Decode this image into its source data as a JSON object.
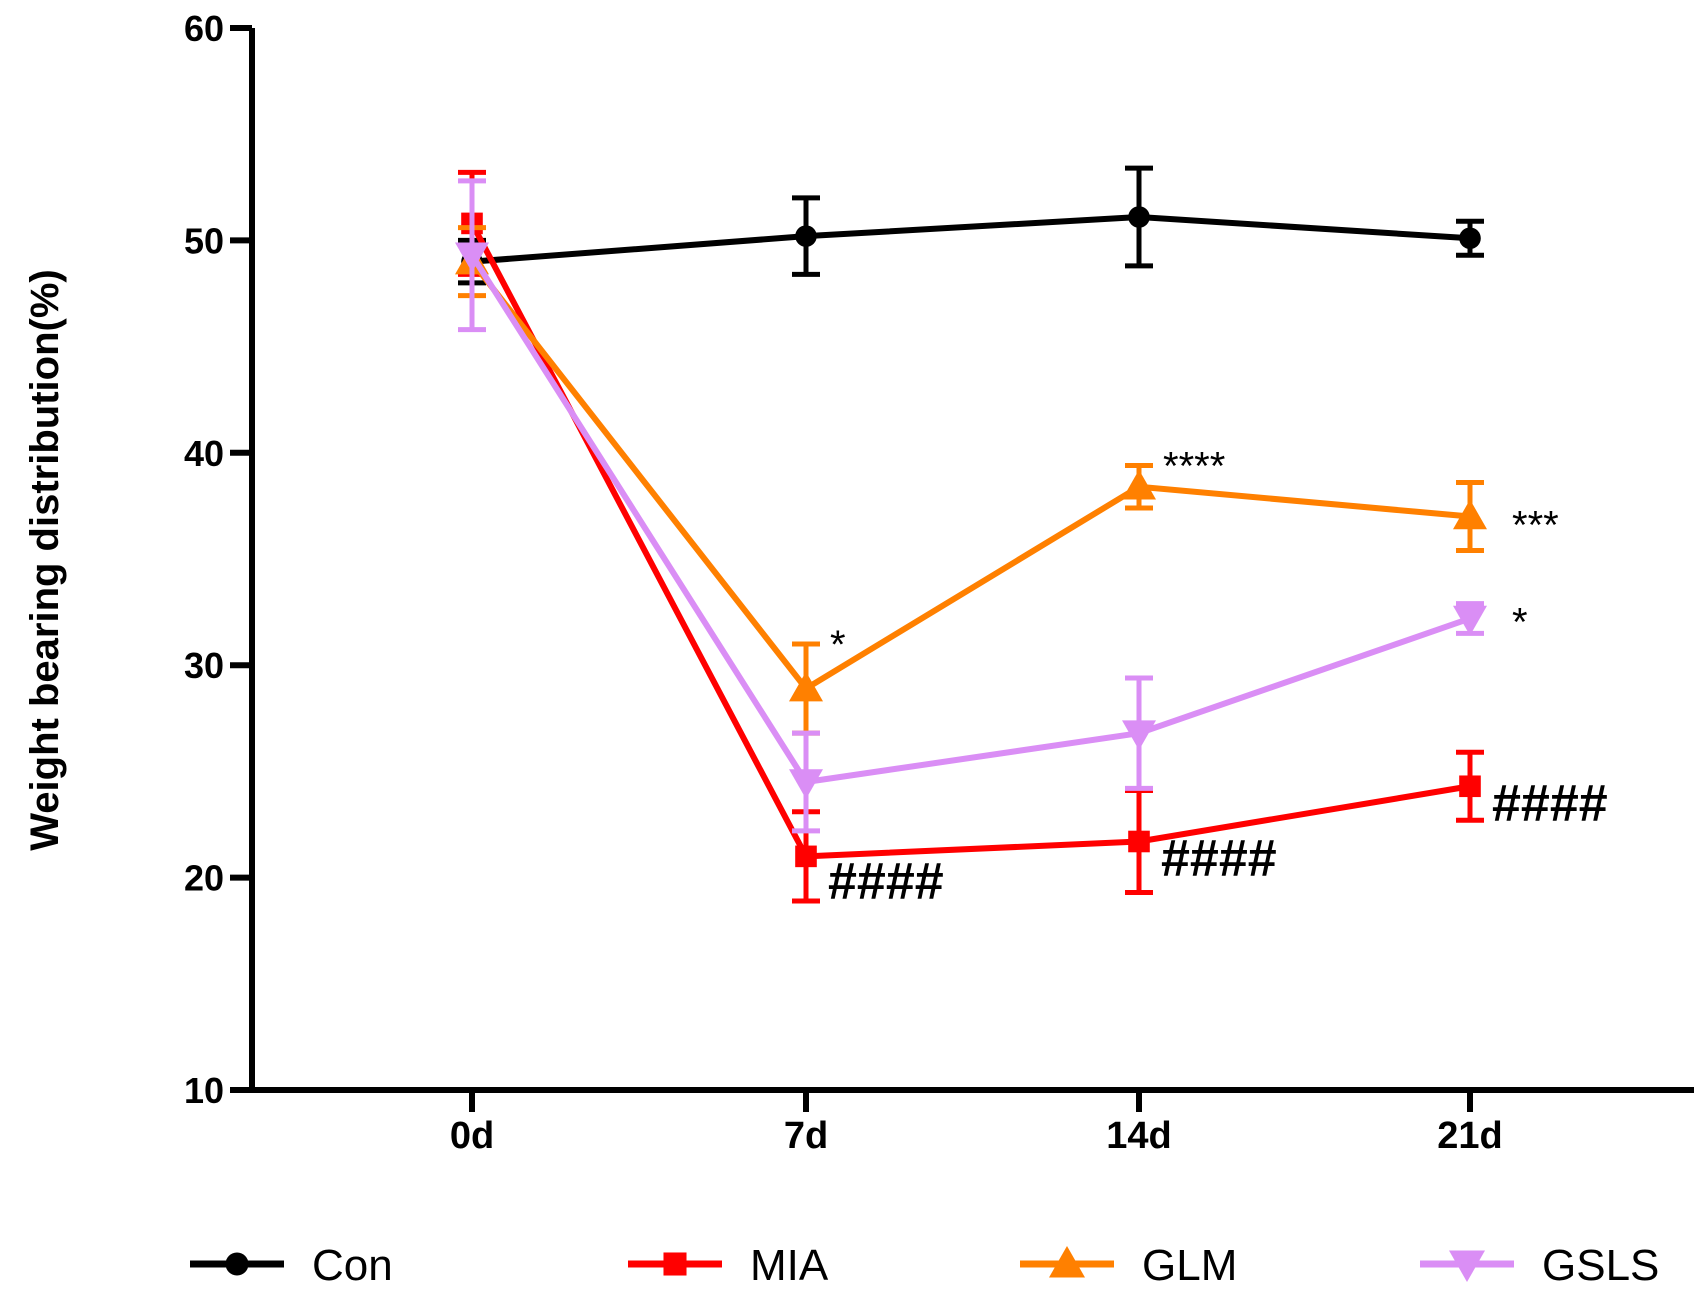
{
  "chart_data": {
    "type": "line",
    "title": "",
    "xlabel": "",
    "ylabel": "Weight bearing distribution(%)",
    "categories": [
      "0d",
      "7d",
      "14d",
      "21d"
    ],
    "ylim": [
      10,
      60
    ],
    "yticks": [
      "10",
      "20",
      "30",
      "40",
      "50",
      "60"
    ],
    "grid": false,
    "legend_position": "bottom",
    "series": [
      {
        "name": "Con",
        "color": "#000000",
        "marker": "circle",
        "values": [
          49.0,
          50.2,
          51.1,
          50.1
        ],
        "errors": [
          1.0,
          1.8,
          2.3,
          0.8
        ]
      },
      {
        "name": "MIA",
        "color": "#ff0000",
        "marker": "square",
        "values": [
          50.8,
          21.0,
          21.7,
          24.3
        ],
        "errors": [
          2.4,
          2.1,
          2.4,
          1.6
        ]
      },
      {
        "name": "GLM",
        "color": "#ff8000",
        "marker": "triangle-up",
        "values": [
          49.0,
          28.9,
          38.4,
          37.0
        ],
        "errors": [
          1.6,
          2.1,
          1.0,
          1.6
        ]
      },
      {
        "name": "GSLS",
        "color": "#da8ef5",
        "marker": "triangle-down",
        "values": [
          49.3,
          24.5,
          26.8,
          32.2
        ],
        "errors": [
          3.5,
          2.3,
          2.6,
          0.7
        ]
      }
    ],
    "annotations": [
      {
        "series": "GLM",
        "index": 1,
        "text": "*"
      },
      {
        "series": "GLM",
        "index": 2,
        "text": "****"
      },
      {
        "series": "GLM",
        "index": 3,
        "text": "***"
      },
      {
        "series": "GSLS",
        "index": 3,
        "text": "*"
      },
      {
        "series": "MIA",
        "index": 1,
        "text": "####"
      },
      {
        "series": "MIA",
        "index": 2,
        "text": "####"
      },
      {
        "series": "MIA",
        "index": 3,
        "text": "####"
      }
    ]
  }
}
